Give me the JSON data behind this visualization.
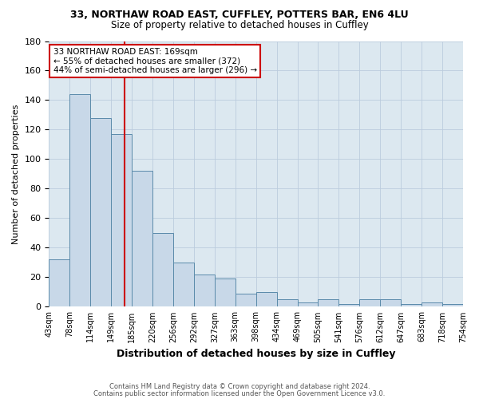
{
  "title1": "33, NORTHAW ROAD EAST, CUFFLEY, POTTERS BAR, EN6 4LU",
  "title2": "Size of property relative to detached houses in Cuffley",
  "xlabel": "Distribution of detached houses by size in Cuffley",
  "ylabel": "Number of detached properties",
  "footnote1": "Contains HM Land Registry data © Crown copyright and database right 2024.",
  "footnote2": "Contains public sector information licensed under the Open Government Licence v3.0.",
  "bin_labels": [
    "43sqm",
    "78sqm",
    "114sqm",
    "149sqm",
    "185sqm",
    "220sqm",
    "256sqm",
    "292sqm",
    "327sqm",
    "363sqm",
    "398sqm",
    "434sqm",
    "469sqm",
    "505sqm",
    "541sqm",
    "576sqm",
    "612sqm",
    "647sqm",
    "683sqm",
    "718sqm",
    "754sqm"
  ],
  "bar_heights": [
    32,
    144,
    128,
    117,
    92,
    50,
    30,
    22,
    19,
    9,
    10,
    5,
    3,
    5,
    2,
    5,
    5,
    2,
    3,
    2
  ],
  "bar_color": "#c8d8e8",
  "bar_edge_color": "#5a8aaa",
  "vline_x": 3.65,
  "vline_color": "#cc0000",
  "annotation_text": "33 NORTHAW ROAD EAST: 169sqm\n← 55% of detached houses are smaller (372)\n44% of semi-detached houses are larger (296) →",
  "annotation_box_color": "#cc0000",
  "ylim": [
    0,
    180
  ],
  "yticks": [
    0,
    20,
    40,
    60,
    80,
    100,
    120,
    140,
    160,
    180
  ],
  "background_color": "#ffffff",
  "axes_bg_color": "#dce8f0",
  "grid_color": "#bbccdd"
}
